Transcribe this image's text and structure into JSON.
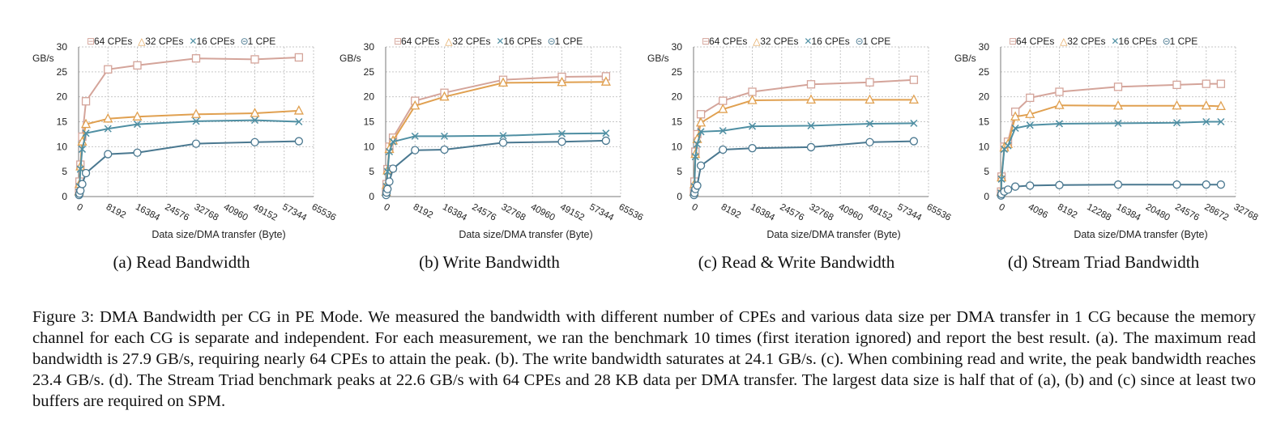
{
  "colors": {
    "s64": "#d4a49a",
    "s32": "#e0a050",
    "s16": "#4f8fa3",
    "s1": "#4a7890",
    "grid": "#c6c6c6",
    "axis": "#7a7a7a"
  },
  "subcaptions": [
    "(a) Read Bandwidth",
    "(b) Write Bandwidth",
    "(c) Read & Write Bandwidth",
    "(d) Stream Triad Bandwidth"
  ],
  "figure_caption": "Figure 3: DMA Bandwidth per CG in PE Mode. We measured the bandwidth with different number of CPEs and various data size per DMA transfer in 1 CG because the memory channel for each CG is separate and independent. For each measurement, we ran the benchmark 10 times (first iteration ignored) and report the best result. (a). The maximum read bandwidth is 27.9 GB/s, requiring nearly 64 CPEs to attain the peak. (b). The write bandwidth saturates at 24.1 GB/s. (c). When combining read and write, the peak bandwidth reaches 23.4 GB/s. (d). The Stream Triad benchmark peaks at 22.6 GB/s with 64 CPEs and 28 KB data per DMA transfer. The largest data size is half that of (a), (b) and (c) since at least two buffers are required on SPM.",
  "chart_data": [
    {
      "type": "line",
      "title": "(a) Read Bandwidth",
      "xlabel": "Data size/DMA transfer (Byte)",
      "ylabel": "GB/s",
      "xlim": [
        0,
        65536
      ],
      "ylim": [
        0,
        30
      ],
      "xticks": [
        "0",
        "8192",
        "16384",
        "24576",
        "32768",
        "40960",
        "49152",
        "57344",
        "65536"
      ],
      "yticks": [
        "0",
        "5",
        "10",
        "15",
        "20",
        "25",
        "30"
      ],
      "legend": [
        "64 CPEs",
        "32 CPEs",
        "16 CPEs",
        "1 CPE"
      ],
      "series": [
        {
          "name": "64 CPEs",
          "marker": "square",
          "x": [
            128,
            256,
            512,
            1024,
            2048,
            8192,
            16384,
            32768,
            49152,
            61440
          ],
          "values": [
            1.2,
            3.0,
            6.4,
            12.0,
            19.1,
            25.5,
            26.3,
            27.7,
            27.5,
            27.9
          ]
        },
        {
          "name": "32 CPEs",
          "marker": "triangle",
          "x": [
            128,
            256,
            512,
            1024,
            2048,
            8192,
            16384,
            32768,
            49152,
            61440
          ],
          "values": [
            1.0,
            2.5,
            6.0,
            11.0,
            14.5,
            15.6,
            16.0,
            16.5,
            16.7,
            17.2
          ]
        },
        {
          "name": "16 CPEs",
          "marker": "x",
          "x": [
            128,
            256,
            512,
            1024,
            2048,
            8192,
            16384,
            32768,
            49152,
            61440
          ],
          "values": [
            0.8,
            2.0,
            5.5,
            9.5,
            12.7,
            13.6,
            14.5,
            15.1,
            15.3,
            15.0
          ]
        },
        {
          "name": "1 CPE",
          "marker": "circle",
          "x": [
            128,
            256,
            512,
            1024,
            2048,
            8192,
            16384,
            32768,
            49152,
            61440
          ],
          "values": [
            0.3,
            0.6,
            1.2,
            2.5,
            4.7,
            8.5,
            8.8,
            10.6,
            10.9,
            11.1
          ]
        }
      ]
    },
    {
      "type": "line",
      "title": "(b) Write Bandwidth",
      "xlabel": "Data size/DMA transfer (Byte)",
      "ylabel": "GB/s",
      "xlim": [
        0,
        65536
      ],
      "ylim": [
        0,
        30
      ],
      "xticks": [
        "0",
        "8192",
        "16384",
        "24576",
        "32768",
        "40960",
        "49152",
        "57344",
        "65536"
      ],
      "yticks": [
        "0",
        "5",
        "10",
        "15",
        "20",
        "25",
        "30"
      ],
      "legend": [
        "64 CPEs",
        "32 CPEs",
        "16 CPEs",
        "1 CPE"
      ],
      "series": [
        {
          "name": "64 CPEs",
          "marker": "square",
          "x": [
            128,
            256,
            512,
            1024,
            2048,
            8192,
            16384,
            32768,
            49152,
            61440
          ],
          "values": [
            1.0,
            2.5,
            5.5,
            10.0,
            11.8,
            19.2,
            20.8,
            23.4,
            24.0,
            24.1
          ]
        },
        {
          "name": "32 CPEs",
          "marker": "triangle",
          "x": [
            128,
            256,
            512,
            1024,
            2048,
            8192,
            16384,
            32768,
            49152,
            61440
          ],
          "values": [
            0.9,
            2.3,
            5.2,
            9.5,
            11.2,
            18.2,
            20.0,
            22.8,
            22.9,
            23.0
          ]
        },
        {
          "name": "16 CPEs",
          "marker": "x",
          "x": [
            128,
            256,
            512,
            1024,
            2048,
            8192,
            16384,
            32768,
            49152,
            61440
          ],
          "values": [
            0.7,
            2.0,
            5.0,
            9.0,
            11.0,
            12.1,
            12.1,
            12.2,
            12.6,
            12.7
          ]
        },
        {
          "name": "1 CPE",
          "marker": "circle",
          "x": [
            128,
            256,
            512,
            1024,
            2048,
            8192,
            16384,
            32768,
            49152,
            61440
          ],
          "values": [
            0.3,
            0.8,
            1.5,
            3.0,
            5.6,
            9.3,
            9.4,
            10.8,
            11.0,
            11.2
          ]
        }
      ]
    },
    {
      "type": "line",
      "title": "(c) Read & Write Bandwidth",
      "xlabel": "Data size/DMA transfer (Byte)",
      "ylabel": "GB/s",
      "xlim": [
        0,
        65536
      ],
      "ylim": [
        0,
        30
      ],
      "xticks": [
        "0",
        "8192",
        "16384",
        "24576",
        "32768",
        "40960",
        "49152",
        "57344",
        "65536"
      ],
      "yticks": [
        "0",
        "5",
        "10",
        "15",
        "20",
        "25",
        "30"
      ],
      "legend": [
        "64 CPEs",
        "32 CPEs",
        "16 CPEs",
        "1 CPE"
      ],
      "series": [
        {
          "name": "64 CPEs",
          "marker": "square",
          "x": [
            128,
            256,
            512,
            1024,
            2048,
            8192,
            16384,
            32768,
            49152,
            61440
          ],
          "values": [
            1.0,
            3.0,
            9.0,
            12.5,
            16.5,
            19.2,
            21.0,
            22.5,
            22.9,
            23.4
          ]
        },
        {
          "name": "32 CPEs",
          "marker": "triangle",
          "x": [
            128,
            256,
            512,
            1024,
            2048,
            8192,
            16384,
            32768,
            49152,
            61440
          ],
          "values": [
            0.9,
            2.5,
            8.5,
            11.5,
            14.8,
            17.5,
            19.3,
            19.4,
            19.4,
            19.4
          ]
        },
        {
          "name": "16 CPEs",
          "marker": "x",
          "x": [
            128,
            256,
            512,
            1024,
            2048,
            8192,
            16384,
            32768,
            49152,
            61440
          ],
          "values": [
            0.7,
            2.0,
            8.0,
            10.5,
            13.0,
            13.2,
            14.1,
            14.2,
            14.6,
            14.7
          ]
        },
        {
          "name": "1 CPE",
          "marker": "circle",
          "x": [
            128,
            256,
            512,
            1024,
            2048,
            8192,
            16384,
            32768,
            49152,
            61440
          ],
          "values": [
            0.3,
            0.7,
            1.5,
            2.2,
            6.2,
            9.4,
            9.7,
            9.9,
            10.9,
            11.1
          ]
        }
      ]
    },
    {
      "type": "line",
      "title": "(d) Stream Triad Bandwidth",
      "xlabel": "Data size/DMA transfer (Byte)",
      "ylabel": "GB/s",
      "xlim": [
        0,
        32768
      ],
      "ylim": [
        0,
        30
      ],
      "xticks": [
        "0",
        "4096",
        "8192",
        "12288",
        "16384",
        "20480",
        "24576",
        "28672",
        "32768"
      ],
      "yticks": [
        "0",
        "5",
        "10",
        "15",
        "20",
        "25",
        "30"
      ],
      "legend": [
        "64 CPEs",
        "32 CPEs",
        "16 CPEs",
        "1 CPE"
      ],
      "series": [
        {
          "name": "64 CPEs",
          "marker": "square",
          "x": [
            64,
            128,
            512,
            1024,
            2048,
            4096,
            8192,
            16384,
            24576,
            28672,
            30720
          ],
          "values": [
            1.0,
            4.0,
            10.0,
            11.0,
            17.0,
            19.8,
            21.0,
            22.0,
            22.4,
            22.6,
            22.6
          ]
        },
        {
          "name": "32 CPEs",
          "marker": "triangle",
          "x": [
            64,
            128,
            512,
            1024,
            2048,
            4096,
            8192,
            16384,
            24576,
            28672,
            30720
          ],
          "values": [
            0.9,
            3.8,
            9.8,
            10.5,
            16.0,
            16.5,
            18.3,
            18.2,
            18.2,
            18.2,
            18.1
          ]
        },
        {
          "name": "16 CPEs",
          "marker": "x",
          "x": [
            64,
            128,
            512,
            1024,
            2048,
            4096,
            8192,
            16384,
            24576,
            28672,
            30720
          ],
          "values": [
            0.7,
            3.5,
            9.5,
            10.2,
            13.7,
            14.3,
            14.6,
            14.7,
            14.8,
            15.0,
            15.0
          ]
        },
        {
          "name": "1 CPE",
          "marker": "circle",
          "x": [
            64,
            128,
            512,
            1024,
            2048,
            4096,
            8192,
            16384,
            24576,
            28672,
            30720
          ],
          "values": [
            0.2,
            0.5,
            1.0,
            1.4,
            2.0,
            2.2,
            2.3,
            2.4,
            2.4,
            2.4,
            2.4
          ]
        }
      ]
    }
  ]
}
